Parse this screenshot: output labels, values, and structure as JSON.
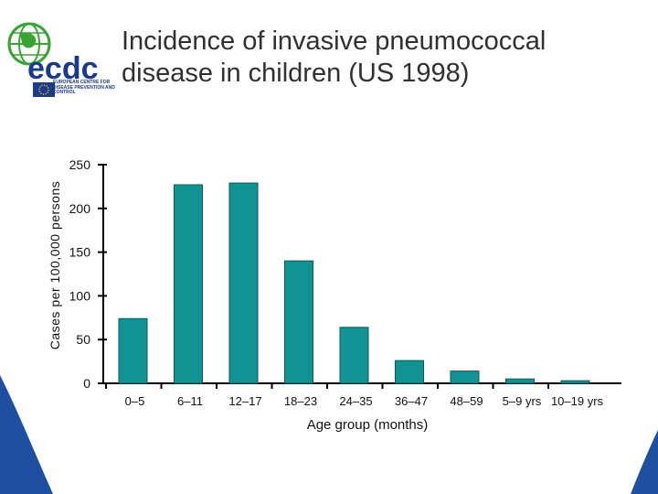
{
  "slide": {
    "title_lines": [
      "Incidence of invasive pneumococcal",
      "disease in children (US 1998)"
    ],
    "logo_text": "ecdc",
    "logo_subtext": "EUROPEAN CENTRE FOR DISEASE PREVENTION AND CONTROL"
  },
  "colors": {
    "bar": "#129393",
    "bar_edge": "#0a5a5a",
    "logo_blue": "#1b3a8a",
    "logo_green": "#3aa335",
    "corner_blue": "#1e4fa0"
  },
  "chart_data": {
    "type": "bar",
    "categories": [
      "0–5",
      "6–11",
      "12–17",
      "18–23",
      "24–35",
      "36–47",
      "48–59",
      "5–9 yrs",
      "10–19 yrs"
    ],
    "values": [
      74,
      227,
      229,
      140,
      64,
      26,
      14,
      5,
      3
    ],
    "ylim": [
      0,
      250
    ],
    "yticks": [
      0,
      50,
      100,
      150,
      200,
      250
    ],
    "ylabel": "Cases per 100,000 persons",
    "xlabel": "Age group (months)",
    "title": "Incidence of invasive pneumococcal disease in children (US 1998)",
    "grid": false
  }
}
